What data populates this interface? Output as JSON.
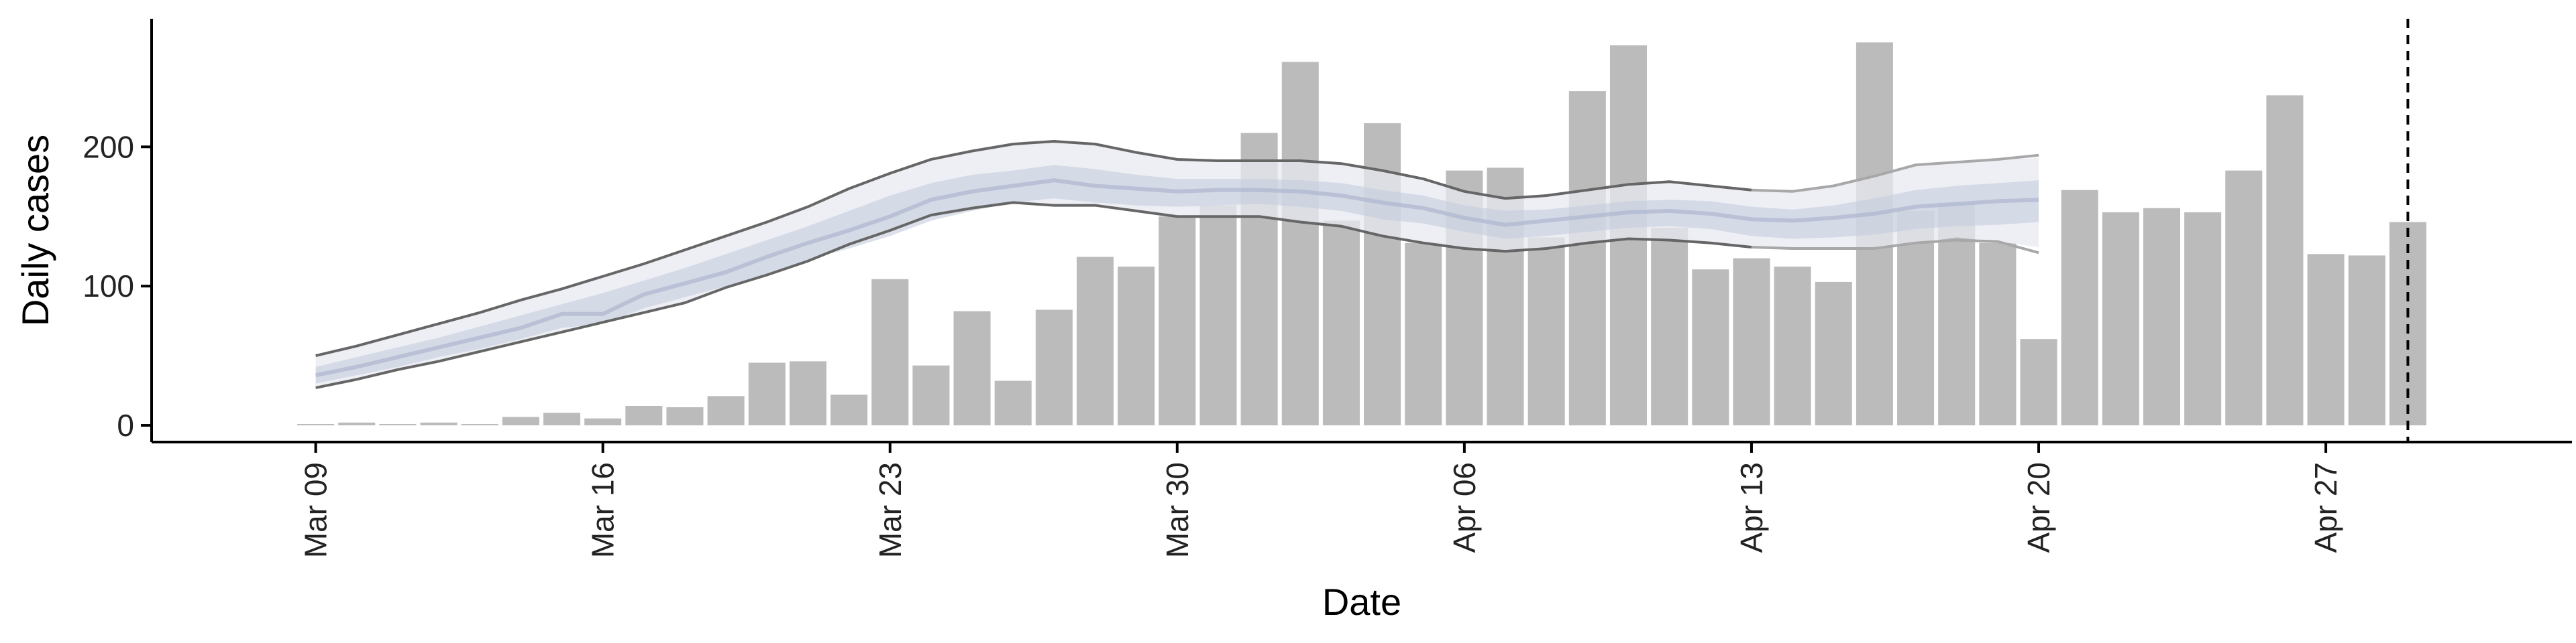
{
  "chart_data": {
    "type": "bar",
    "xlabel": "Date",
    "ylabel": "Daily cases",
    "ylim": [
      -12,
      292
    ],
    "xlim": [
      "2020-03-05",
      "2020-05-03"
    ],
    "grid": false,
    "legend": "none",
    "x_ticks": [
      {
        "date": "2020-03-09",
        "label": "Mar 09"
      },
      {
        "date": "2020-03-16",
        "label": "Mar 16"
      },
      {
        "date": "2020-03-23",
        "label": "Mar 23"
      },
      {
        "date": "2020-03-30",
        "label": "Mar 30"
      },
      {
        "date": "2020-04-06",
        "label": "Apr 06"
      },
      {
        "date": "2020-04-13",
        "label": "Apr 13"
      },
      {
        "date": "2020-04-20",
        "label": "Apr 20"
      },
      {
        "date": "2020-04-27",
        "label": "Apr 27"
      }
    ],
    "y_ticks": [
      0,
      100,
      200
    ],
    "bar_color": "#bbbbbb",
    "bars": {
      "dates": [
        "2020-03-09",
        "2020-03-10",
        "2020-03-11",
        "2020-03-12",
        "2020-03-13",
        "2020-03-14",
        "2020-03-15",
        "2020-03-16",
        "2020-03-17",
        "2020-03-18",
        "2020-03-19",
        "2020-03-20",
        "2020-03-21",
        "2020-03-22",
        "2020-03-23",
        "2020-03-24",
        "2020-03-25",
        "2020-03-26",
        "2020-03-27",
        "2020-03-28",
        "2020-03-29",
        "2020-03-30",
        "2020-03-31",
        "2020-04-01",
        "2020-04-02",
        "2020-04-03",
        "2020-04-04",
        "2020-04-05",
        "2020-04-06",
        "2020-04-07",
        "2020-04-08",
        "2020-04-09",
        "2020-04-10",
        "2020-04-11",
        "2020-04-12",
        "2020-04-13",
        "2020-04-14",
        "2020-04-15",
        "2020-04-16",
        "2020-04-17",
        "2020-04-18",
        "2020-04-19",
        "2020-04-20",
        "2020-04-21",
        "2020-04-22",
        "2020-04-23",
        "2020-04-24",
        "2020-04-25",
        "2020-04-26",
        "2020-04-27",
        "2020-04-28",
        "2020-04-29"
      ],
      "values": [
        1,
        2,
        1,
        2,
        1,
        6,
        9,
        5,
        14,
        13,
        21,
        45,
        46,
        22,
        105,
        43,
        82,
        32,
        83,
        121,
        114,
        150,
        158,
        210,
        261,
        147,
        217,
        131,
        183,
        185,
        135,
        240,
        273,
        142,
        112,
        120,
        114,
        103,
        275,
        154,
        160,
        131,
        62,
        169,
        153,
        156,
        153,
        183,
        237,
        123,
        122,
        146
      ]
    },
    "estimate": {
      "band_color": "#c5cbdd",
      "outer_band_color": "#e8eaf2",
      "line_color": "#666666",
      "dates": [
        "2020-03-09",
        "2020-03-10",
        "2020-03-11",
        "2020-03-12",
        "2020-03-13",
        "2020-03-14",
        "2020-03-15",
        "2020-03-16",
        "2020-03-17",
        "2020-03-18",
        "2020-03-19",
        "2020-03-20",
        "2020-03-21",
        "2020-03-22",
        "2020-03-23",
        "2020-03-24",
        "2020-03-25",
        "2020-03-26",
        "2020-03-27",
        "2020-03-28",
        "2020-03-29",
        "2020-03-30",
        "2020-03-31",
        "2020-04-01",
        "2020-04-02",
        "2020-04-03",
        "2020-04-04",
        "2020-04-05",
        "2020-04-06",
        "2020-04-07",
        "2020-04-08",
        "2020-04-09",
        "2020-04-10",
        "2020-04-11",
        "2020-04-12",
        "2020-04-13",
        "2020-04-14",
        "2020-04-15",
        "2020-04-16",
        "2020-04-17",
        "2020-04-18",
        "2020-04-19",
        "2020-04-20"
      ],
      "upper90": [
        50,
        57,
        65,
        73,
        81,
        90,
        98,
        107,
        116,
        126,
        136,
        146,
        157,
        170,
        181,
        191,
        197,
        202,
        204,
        202,
        196,
        191,
        190,
        190,
        190,
        188,
        183,
        177,
        168,
        163,
        165,
        169,
        173,
        175,
        172,
        169,
        168,
        172,
        179,
        187,
        189,
        191,
        192
      ],
      "upper50": [
        42,
        49,
        56,
        63,
        71,
        79,
        87,
        95,
        104,
        113,
        123,
        133,
        143,
        154,
        165,
        174,
        180,
        183,
        187,
        184,
        180,
        177,
        177,
        177,
        176,
        174,
        169,
        165,
        158,
        154,
        155,
        158,
        161,
        162,
        161,
        157,
        155,
        158,
        163,
        169,
        172,
        174,
        176
      ],
      "median": [
        36,
        42,
        49,
        56,
        63,
        70,
        80,
        80,
        94,
        102,
        110,
        121,
        131,
        140,
        150,
        162,
        168,
        172,
        176,
        172,
        170,
        168,
        169,
        169,
        168,
        165,
        160,
        156,
        149,
        144,
        147,
        150,
        153,
        154,
        152,
        148,
        147,
        149,
        152,
        157,
        159,
        161,
        162
      ],
      "lower50": [
        30,
        36,
        42,
        49,
        55,
        62,
        70,
        73,
        84,
        92,
        100,
        109,
        119,
        127,
        136,
        147,
        154,
        160,
        163,
        160,
        158,
        157,
        158,
        159,
        157,
        154,
        148,
        145,
        139,
        134,
        136,
        139,
        142,
        143,
        141,
        136,
        134,
        135,
        137,
        141,
        143,
        144,
        146
      ],
      "lower90": [
        27,
        33,
        40,
        46,
        53,
        60,
        67,
        74,
        81,
        88,
        99,
        108,
        118,
        130,
        140,
        151,
        156,
        160,
        158,
        158,
        154,
        150,
        150,
        150,
        146,
        143,
        136,
        131,
        127,
        125,
        127,
        131,
        134,
        133,
        131,
        128,
        127,
        127,
        127,
        131,
        135,
        132,
        128
      ]
    },
    "forecast": {
      "dates": [
        "2020-04-13",
        "2020-04-14",
        "2020-04-15",
        "2020-04-16",
        "2020-04-17",
        "2020-04-18",
        "2020-04-19",
        "2020-04-20"
      ],
      "upper90": [
        169,
        168,
        172,
        179,
        187,
        189,
        191,
        194
      ],
      "lower90": [
        128,
        127,
        127,
        127,
        131,
        133,
        132,
        124
      ]
    },
    "vline": {
      "date": "2020-04-29"
    }
  }
}
